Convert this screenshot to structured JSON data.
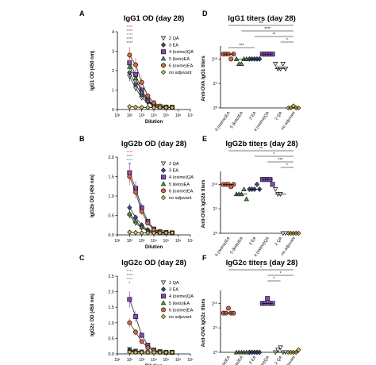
{
  "colors": {
    "qa2": "#ffffff",
    "ea3": "#4a4a9a",
    "oximeqa4": "#8b45c8",
    "ketoea5": "#4fb048",
    "oximeea6": "#e8643c",
    "noadj": "#e6d040",
    "axis": "#000000"
  },
  "chart_data": [
    {
      "panel": "A",
      "type": "line",
      "title": "IgG1 OD (day 28)",
      "xlabel": "Dilution",
      "ylabel": "IgG1 OD (450 nm)",
      "xscale": "log",
      "xticks": [
        "10¹",
        "10²",
        "10³",
        "10⁴",
        "10⁵",
        "10⁶",
        "10⁷"
      ],
      "ylim": [
        0,
        4
      ],
      "yticks": [
        "0",
        "1",
        "2",
        "3",
        "4"
      ],
      "x": [
        100,
        316,
        1000,
        3162,
        10000,
        31623,
        100000,
        316228
      ],
      "legend": "top-right",
      "sig_marks": [
        "****",
        "****",
        "****",
        "****",
        "****"
      ],
      "series": [
        {
          "name": "2 QA",
          "key": "qa2",
          "values": [
            1.7,
            1.1,
            0.6,
            0.35,
            0.2,
            0.14,
            0.12,
            0.11
          ]
        },
        {
          "name": "3 EA",
          "key": "ea3",
          "values": [
            1.9,
            1.3,
            0.75,
            0.4,
            0.22,
            0.15,
            0.12,
            0.11
          ]
        },
        {
          "name": "4 (oxime)QA",
          "key": "oximeqa4",
          "values": [
            2.4,
            1.8,
            1.0,
            0.5,
            0.25,
            0.15,
            0.12,
            0.11
          ]
        },
        {
          "name": "5 (keto)EA",
          "key": "ketoea5",
          "values": [
            2.2,
            1.6,
            0.9,
            0.45,
            0.22,
            0.14,
            0.12,
            0.11
          ]
        },
        {
          "name": "6 (oxime)EA",
          "key": "oximeea6",
          "values": [
            2.8,
            2.3,
            1.4,
            0.7,
            0.35,
            0.18,
            0.13,
            0.11
          ]
        },
        {
          "name": "no adjuvant",
          "key": "noadj",
          "values": [
            0.15,
            0.12,
            0.11,
            0.1,
            0.1,
            0.1,
            0.1,
            0.1
          ]
        }
      ]
    },
    {
      "panel": "B",
      "type": "line",
      "title": "IgG2b OD (day 28)",
      "xlabel": "Dilution",
      "ylabel": "IgG2b OD (450 nm)",
      "xscale": "log",
      "xticks": [
        "10¹",
        "10²",
        "10³",
        "10⁴",
        "10⁵",
        "10⁶",
        "10⁷"
      ],
      "ylim": [
        0,
        2
      ],
      "yticks": [
        "0.0",
        "0.5",
        "1.0",
        "1.5",
        "2.0"
      ],
      "x": [
        100,
        316,
        1000,
        3162,
        10000,
        31623,
        100000,
        316228
      ],
      "legend": "top-right",
      "sig_marks": [
        "****",
        "****",
        "****",
        "**"
      ],
      "series": [
        {
          "name": "2 QA",
          "key": "qa2",
          "values": [
            0.5,
            0.3,
            0.18,
            0.1,
            0.07,
            0.06,
            0.05,
            0.05
          ]
        },
        {
          "name": "3 EA",
          "key": "ea3",
          "values": [
            0.7,
            0.45,
            0.25,
            0.13,
            0.08,
            0.06,
            0.05,
            0.05
          ]
        },
        {
          "name": "4 (oxime)QA",
          "key": "oximeqa4",
          "values": [
            1.6,
            1.2,
            0.7,
            0.35,
            0.15,
            0.08,
            0.06,
            0.05
          ]
        },
        {
          "name": "5 (keto)EA",
          "key": "ketoea5",
          "values": [
            0.55,
            0.35,
            0.2,
            0.1,
            0.07,
            0.06,
            0.05,
            0.05
          ]
        },
        {
          "name": "6 (oxime)EA",
          "key": "oximeea6",
          "values": [
            1.5,
            1.1,
            0.6,
            0.3,
            0.13,
            0.07,
            0.06,
            0.05
          ]
        },
        {
          "name": "no adjuvant",
          "key": "noadj",
          "values": [
            0.07,
            0.06,
            0.05,
            0.05,
            0.05,
            0.05,
            0.05,
            0.05
          ]
        }
      ]
    },
    {
      "panel": "C",
      "type": "line",
      "title": "IgG2c OD (day 28)",
      "xlabel": "Dilution",
      "ylabel": "IgG2c OD (450 nm)",
      "xscale": "log",
      "xticks": [
        "10¹",
        "10²",
        "10³",
        "10⁴",
        "10⁵",
        "10⁶",
        "10⁷"
      ],
      "ylim": [
        0,
        2.5
      ],
      "yticks": [
        "0.0",
        "0.5",
        "1.0",
        "1.5",
        "2.0",
        "2.5"
      ],
      "x": [
        100,
        316,
        1000,
        3162,
        10000,
        31623,
        100000,
        316228
      ],
      "legend": "top-right",
      "sig_marks": [
        "****",
        "****",
        "****",
        "*"
      ],
      "series": [
        {
          "name": "2 QA",
          "key": "qa2",
          "values": [
            0.15,
            0.1,
            0.07,
            0.05,
            0.05,
            0.05,
            0.05,
            0.05
          ]
        },
        {
          "name": "3 EA",
          "key": "ea3",
          "values": [
            0.12,
            0.08,
            0.06,
            0.05,
            0.05,
            0.05,
            0.05,
            0.05
          ]
        },
        {
          "name": "4 (oxime)QA",
          "key": "oximeqa4",
          "values": [
            1.75,
            1.2,
            0.6,
            0.28,
            0.12,
            0.07,
            0.05,
            0.05
          ]
        },
        {
          "name": "5 (keto)EA",
          "key": "ketoea5",
          "values": [
            0.1,
            0.07,
            0.06,
            0.05,
            0.05,
            0.05,
            0.05,
            0.05
          ]
        },
        {
          "name": "6 (oxime)EA",
          "key": "oximeea6",
          "values": [
            1.0,
            0.7,
            0.4,
            0.2,
            0.1,
            0.06,
            0.05,
            0.05
          ]
        },
        {
          "name": "no adjuvant",
          "key": "noadj",
          "values": [
            0.06,
            0.05,
            0.05,
            0.05,
            0.05,
            0.05,
            0.05,
            0.05
          ]
        }
      ]
    },
    {
      "panel": "D",
      "type": "scatter",
      "title": "IgG1 titers (day 28)",
      "ylabel": "Anti-OVA IgG1 titers",
      "yscale": "log2",
      "yticks": [
        "2¹⁰",
        "2⁵",
        "2⁰"
      ],
      "ylim": [
        0,
        12
      ],
      "categories": [
        "6 (oxime)EA",
        "5 (keto)EA",
        "3 EA",
        "4 (oxime)QA",
        "2 QA",
        "no adjuvant"
      ],
      "keys": [
        "oximeea6",
        "ketoea5",
        "ea3",
        "oximeqa4",
        "qa2",
        "noadj"
      ],
      "values": [
        [
          11,
          11,
          11,
          10,
          11
        ],
        [
          10,
          9,
          9,
          10,
          10
        ],
        [
          10,
          10,
          10,
          10,
          10
        ],
        [
          11,
          11,
          11,
          11,
          11
        ],
        [
          9,
          8,
          8,
          9,
          8
        ],
        [
          0,
          0,
          0.4,
          0,
          0
        ]
      ],
      "brackets": [
        {
          "from": 0,
          "to": 5,
          "label": "***"
        },
        {
          "from": 1,
          "to": 5,
          "label": "****"
        },
        {
          "from": 2,
          "to": 5,
          "label": "**"
        },
        {
          "from": 4,
          "to": 5,
          "label": "*"
        },
        {
          "from": 0,
          "to": 2,
          "label": "***"
        }
      ]
    },
    {
      "panel": "E",
      "type": "scatter",
      "title": "IgG2b titers (day 28)",
      "ylabel": "Anti-OVA IgG2b titers",
      "yscale": "log2",
      "yticks": [
        "2¹⁰",
        "2⁵",
        "2⁰"
      ],
      "ylim": [
        0,
        12
      ],
      "categories": [
        "6 (oxime)EA",
        "5 (keto)EA",
        "3 EA",
        "4 (oxime)QA",
        "2 QA",
        "no adjuvant"
      ],
      "keys": [
        "oximeea6",
        "ketoea5",
        "ea3",
        "oximeqa4",
        "qa2",
        "noadj"
      ],
      "values": [
        [
          10,
          10,
          10,
          9.5,
          10
        ],
        [
          8,
          8,
          8,
          9,
          7
        ],
        [
          9,
          9,
          9,
          10,
          9
        ],
        [
          11,
          11,
          11,
          11,
          10
        ],
        [
          9,
          8,
          8,
          0,
          0
        ],
        [
          0,
          0,
          0,
          0,
          0
        ]
      ],
      "brackets": [
        {
          "from": 0,
          "to": 5,
          "label": "**"
        },
        {
          "from": 2,
          "to": 5,
          "label": "*"
        },
        {
          "from": 3,
          "to": 5,
          "label": "***"
        },
        {
          "from": 4,
          "to": 5,
          "label": "*"
        }
      ]
    },
    {
      "panel": "F",
      "type": "scatter",
      "title": "IgG2c titers (day 28)",
      "ylabel": "Anti-OVA IgG2c titers",
      "yscale": "log2",
      "yticks": [
        "2¹⁰",
        "2⁵",
        "2⁰"
      ],
      "ylim": [
        0,
        12
      ],
      "categories": [
        "6 (oxime)EA",
        "5 (keto)EA",
        "3 EA",
        "4 (oxime)QA",
        "2 QA",
        "no adjuvant"
      ],
      "keys": [
        "oximeea6",
        "ketoea5",
        "ea3",
        "oximeqa4",
        "qa2",
        "noadj"
      ],
      "values": [
        [
          8,
          8,
          9,
          8,
          8
        ],
        [
          0,
          0,
          0,
          0,
          0
        ],
        [
          0,
          0,
          0,
          0,
          0
        ],
        [
          10,
          10,
          11,
          10,
          10
        ],
        [
          0,
          0.5,
          1,
          0,
          0
        ],
        [
          0,
          0,
          0,
          0,
          0.5
        ]
      ],
      "brackets": [
        {
          "from": 0,
          "to": 5,
          "label": "*"
        },
        {
          "from": 3,
          "to": 5,
          "label": "*"
        },
        {
          "from": 3,
          "to": 4,
          "label": "*"
        }
      ]
    }
  ]
}
